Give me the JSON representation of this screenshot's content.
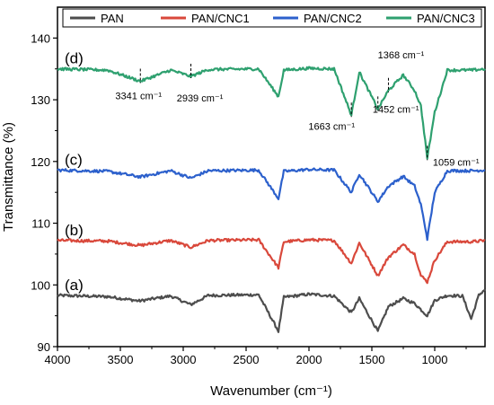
{
  "chart_data": {
    "type": "line",
    "title": "",
    "xlabel": "Wavenumber (cm⁻¹)",
    "ylabel": "Transmittance (%)",
    "xlim": [
      4000,
      600
    ],
    "ylim": [
      90,
      145
    ],
    "x_reversed": true,
    "grid": false,
    "legend_placement": "top",
    "x_ticks": [
      4000,
      3500,
      3000,
      2500,
      2000,
      1500,
      1000
    ],
    "y_ticks": [
      90,
      100,
      110,
      120,
      130,
      140
    ],
    "x_tick_labels": [
      "4000",
      "3500",
      "3000",
      "2500",
      "2000",
      "1500",
      "1000"
    ],
    "y_tick_labels": [
      "90",
      "100",
      "110",
      "120",
      "130",
      "140"
    ],
    "series": [
      {
        "name": "PAN",
        "panel": "(a)",
        "color": "#4d4d4d",
        "baseline": 98.3,
        "points": [
          [
            4000,
            98.3
          ],
          [
            3600,
            98.1
          ],
          [
            3350,
            97.4
          ],
          [
            3100,
            98.2
          ],
          [
            2940,
            96.8
          ],
          [
            2800,
            98.3
          ],
          [
            2400,
            98.4
          ],
          [
            2243,
            92.5
          ],
          [
            2200,
            98.0
          ],
          [
            2000,
            98.5
          ],
          [
            1800,
            98.2
          ],
          [
            1663,
            95.5
          ],
          [
            1600,
            97.8
          ],
          [
            1452,
            92.5
          ],
          [
            1368,
            96.5
          ],
          [
            1250,
            97.8
          ],
          [
            1160,
            97.0
          ],
          [
            1059,
            95.0
          ],
          [
            1000,
            97.5
          ],
          [
            900,
            98.3
          ],
          [
            780,
            98.2
          ],
          [
            710,
            94.5
          ],
          [
            650,
            98.3
          ],
          [
            600,
            99.3
          ]
        ]
      },
      {
        "name": "PAN/CNC1",
        "panel": "(b)",
        "color": "#d9483b",
        "baseline": 107.2,
        "points": [
          [
            4000,
            107.2
          ],
          [
            3600,
            107.1
          ],
          [
            3341,
            106.4
          ],
          [
            3100,
            107.2
          ],
          [
            2939,
            106.1
          ],
          [
            2800,
            107.2
          ],
          [
            2400,
            107.3
          ],
          [
            2243,
            102.8
          ],
          [
            2200,
            107.0
          ],
          [
            2000,
            107.3
          ],
          [
            1800,
            107.2
          ],
          [
            1663,
            103.5
          ],
          [
            1600,
            106.8
          ],
          [
            1452,
            101.5
          ],
          [
            1368,
            104.5
          ],
          [
            1250,
            106.5
          ],
          [
            1160,
            105.0
          ],
          [
            1110,
            101.5
          ],
          [
            1059,
            100.5
          ],
          [
            1000,
            104.0
          ],
          [
            900,
            107.0
          ],
          [
            700,
            107.0
          ],
          [
            600,
            107.2
          ]
        ]
      },
      {
        "name": "PAN/CNC2",
        "panel": "(c)",
        "color": "#2c60cc",
        "baseline": 118.6,
        "points": [
          [
            4000,
            118.6
          ],
          [
            3600,
            118.4
          ],
          [
            3341,
            117.5
          ],
          [
            3100,
            118.5
          ],
          [
            2939,
            117.3
          ],
          [
            2800,
            118.5
          ],
          [
            2400,
            118.6
          ],
          [
            2243,
            114.0
          ],
          [
            2200,
            118.4
          ],
          [
            2000,
            118.7
          ],
          [
            1800,
            118.6
          ],
          [
            1663,
            115.0
          ],
          [
            1600,
            118.0
          ],
          [
            1452,
            113.5
          ],
          [
            1368,
            116.0
          ],
          [
            1250,
            117.6
          ],
          [
            1160,
            116.0
          ],
          [
            1110,
            113.0
          ],
          [
            1059,
            107.5
          ],
          [
            1000,
            115.0
          ],
          [
            900,
            118.5
          ],
          [
            700,
            118.5
          ],
          [
            600,
            118.6
          ]
        ]
      },
      {
        "name": "PAN/CNC3",
        "panel": "(d)",
        "color": "#2ea06f",
        "baseline": 135.0,
        "points": [
          [
            4000,
            135.0
          ],
          [
            3600,
            134.8
          ],
          [
            3341,
            133.0
          ],
          [
            3100,
            134.8
          ],
          [
            2939,
            133.8
          ],
          [
            2800,
            134.9
          ],
          [
            2400,
            135.0
          ],
          [
            2243,
            130.5
          ],
          [
            2200,
            134.8
          ],
          [
            2000,
            135.1
          ],
          [
            1800,
            135.0
          ],
          [
            1663,
            127.5
          ],
          [
            1600,
            134.5
          ],
          [
            1452,
            128.5
          ],
          [
            1368,
            131.5
          ],
          [
            1250,
            134.0
          ],
          [
            1160,
            131.5
          ],
          [
            1110,
            129.0
          ],
          [
            1059,
            120.5
          ],
          [
            1000,
            128.0
          ],
          [
            900,
            134.8
          ],
          [
            700,
            134.8
          ],
          [
            600,
            135.0
          ]
        ]
      }
    ],
    "annotations": [
      {
        "text": "3341 cm⁻¹",
        "x": 3341,
        "y": 133.0
      },
      {
        "text": "2939 cm⁻¹",
        "x": 2939,
        "y": 133.8
      },
      {
        "text": "1663 cm⁻¹",
        "x": 1663,
        "y": 127.5
      },
      {
        "text": "1452 cm⁻¹",
        "x": 1452,
        "y": 128.5
      },
      {
        "text": "1368 cm⁻¹",
        "x": 1368,
        "y": 131.5
      },
      {
        "text": "1059 cm⁻¹",
        "x": 1059,
        "y": 120.5
      }
    ]
  }
}
